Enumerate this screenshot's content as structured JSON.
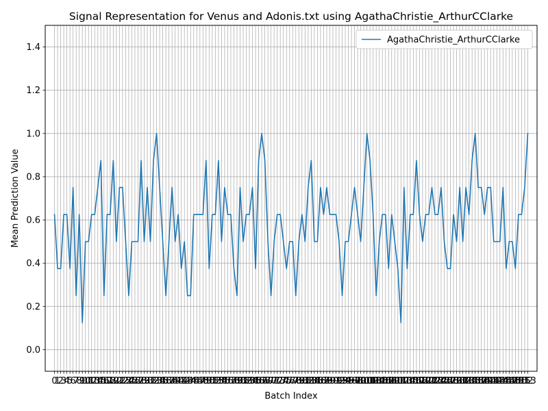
{
  "chart_data": {
    "type": "line",
    "title": "Signal Representation for Venus and Adonis.txt using AgathaChristie_ArthurCClarke",
    "xlabel": "Batch Index",
    "ylabel": "Mean Prediction Value",
    "xlim": [
      -3,
      156
    ],
    "ylim": [
      -0.1,
      1.5
    ],
    "yticks": [
      0.0,
      0.2,
      0.4,
      0.6,
      0.8,
      1.0,
      1.2,
      1.4
    ],
    "ytick_labels": [
      "0.0",
      "0.2",
      "0.4",
      "0.6",
      "0.8",
      "1.0",
      "1.2",
      "1.4"
    ],
    "xticks": [
      0,
      1,
      2,
      3,
      4,
      5,
      6,
      7,
      8,
      9,
      10,
      11,
      12,
      13,
      14,
      15,
      16,
      17,
      18,
      19,
      20,
      21,
      22,
      23,
      24,
      25,
      26,
      27,
      28,
      29,
      30,
      31,
      32,
      33,
      34,
      35,
      36,
      37,
      38,
      39,
      40,
      41,
      42,
      43,
      44,
      45,
      46,
      47,
      48,
      49,
      50,
      51,
      52,
      53,
      54,
      55,
      56,
      57,
      58,
      59,
      60,
      61,
      62,
      63,
      64,
      65,
      66,
      67,
      68,
      69,
      70,
      71,
      72,
      73,
      74,
      75,
      76,
      77,
      78,
      79,
      80,
      81,
      82,
      83,
      84,
      85,
      86,
      87,
      88,
      89,
      90,
      91,
      92,
      93,
      94,
      95,
      96,
      97,
      98,
      99,
      100,
      101,
      102,
      103,
      104,
      105,
      106,
      107,
      108,
      109,
      110,
      111,
      112,
      113,
      114,
      115,
      116,
      117,
      118,
      119,
      120,
      121,
      122,
      123,
      124,
      125,
      126,
      127,
      128,
      129,
      130,
      131,
      132,
      133,
      134,
      135,
      136,
      137,
      138,
      139,
      140,
      141,
      142,
      143,
      144,
      145,
      146,
      147,
      148,
      149,
      150,
      151,
      152,
      153
    ],
    "grid": true,
    "legend_position": "top-right",
    "series": [
      {
        "name": "AgathaChristie_ArthurCClarke",
        "color": "#1f77b4",
        "x": [
          0,
          1,
          2,
          3,
          4,
          5,
          6,
          7,
          8,
          9,
          10,
          11,
          12,
          13,
          14,
          15,
          16,
          17,
          18,
          19,
          20,
          21,
          22,
          23,
          24,
          25,
          26,
          27,
          28,
          29,
          30,
          31,
          32,
          33,
          34,
          35,
          36,
          37,
          38,
          39,
          40,
          41,
          42,
          43,
          44,
          45,
          46,
          47,
          48,
          49,
          50,
          51,
          52,
          53,
          54,
          55,
          56,
          57,
          58,
          59,
          60,
          61,
          62,
          63,
          64,
          65,
          66,
          67,
          68,
          69,
          70,
          71,
          72,
          73,
          74,
          75,
          76,
          77,
          78,
          79,
          80,
          81,
          82,
          83,
          84,
          85,
          86,
          87,
          88,
          89,
          90,
          91,
          92,
          93,
          94,
          95,
          96,
          97,
          98,
          99,
          100,
          101,
          102,
          103,
          104,
          105,
          106,
          107,
          108,
          109,
          110,
          111,
          112,
          113,
          114,
          115,
          116,
          117,
          118,
          119,
          120,
          121,
          122,
          123,
          124,
          125,
          126,
          127,
          128,
          129,
          130,
          131,
          132,
          133,
          134,
          135,
          136,
          137,
          138,
          139,
          140,
          141,
          142,
          143,
          144,
          145,
          146,
          147,
          148,
          149,
          150,
          151,
          152,
          153
        ],
        "values": [
          0.625,
          0.375,
          0.375,
          0.625,
          0.625,
          0.375,
          0.75,
          0.25,
          0.625,
          0.125,
          0.5,
          0.5,
          0.625,
          0.625,
          0.75,
          0.875,
          0.25,
          0.625,
          0.625,
          0.875,
          0.5,
          0.75,
          0.75,
          0.5,
          0.25,
          0.5,
          0.5,
          0.5,
          0.875,
          0.5,
          0.75,
          0.5,
          0.875,
          1.0,
          0.75,
          0.5,
          0.25,
          0.5,
          0.75,
          0.5,
          0.625,
          0.375,
          0.5,
          0.25,
          0.25,
          0.625,
          0.625,
          0.625,
          0.625,
          0.875,
          0.375,
          0.625,
          0.625,
          0.875,
          0.5,
          0.75,
          0.625,
          0.625,
          0.375,
          0.25,
          0.75,
          0.5,
          0.625,
          0.625,
          0.75,
          0.375,
          0.875,
          1.0,
          0.875,
          0.5,
          0.25,
          0.5,
          0.625,
          0.625,
          0.5,
          0.375,
          0.5,
          0.5,
          0.25,
          0.5,
          0.625,
          0.5,
          0.75,
          0.875,
          0.5,
          0.5,
          0.75,
          0.625,
          0.75,
          0.625,
          0.625,
          0.625,
          0.5,
          0.25,
          0.5,
          0.5,
          0.625,
          0.75,
          0.625,
          0.5,
          0.75,
          1.0,
          0.875,
          0.625,
          0.25,
          0.5,
          0.625,
          0.625,
          0.375,
          0.625,
          0.5,
          0.375,
          0.125,
          0.75,
          0.375,
          0.625,
          0.625,
          0.875,
          0.625,
          0.5,
          0.625,
          0.625,
          0.75,
          0.625,
          0.625,
          0.75,
          0.5,
          0.375,
          0.375,
          0.625,
          0.5,
          0.75,
          0.5,
          0.75,
          0.625,
          0.875,
          1.0,
          0.75,
          0.75,
          0.625,
          0.75,
          0.75,
          0.5,
          0.5,
          0.5,
          0.75,
          0.375,
          0.5,
          0.5,
          0.375,
          0.625,
          0.625,
          0.75,
          1.0
        ]
      }
    ]
  }
}
